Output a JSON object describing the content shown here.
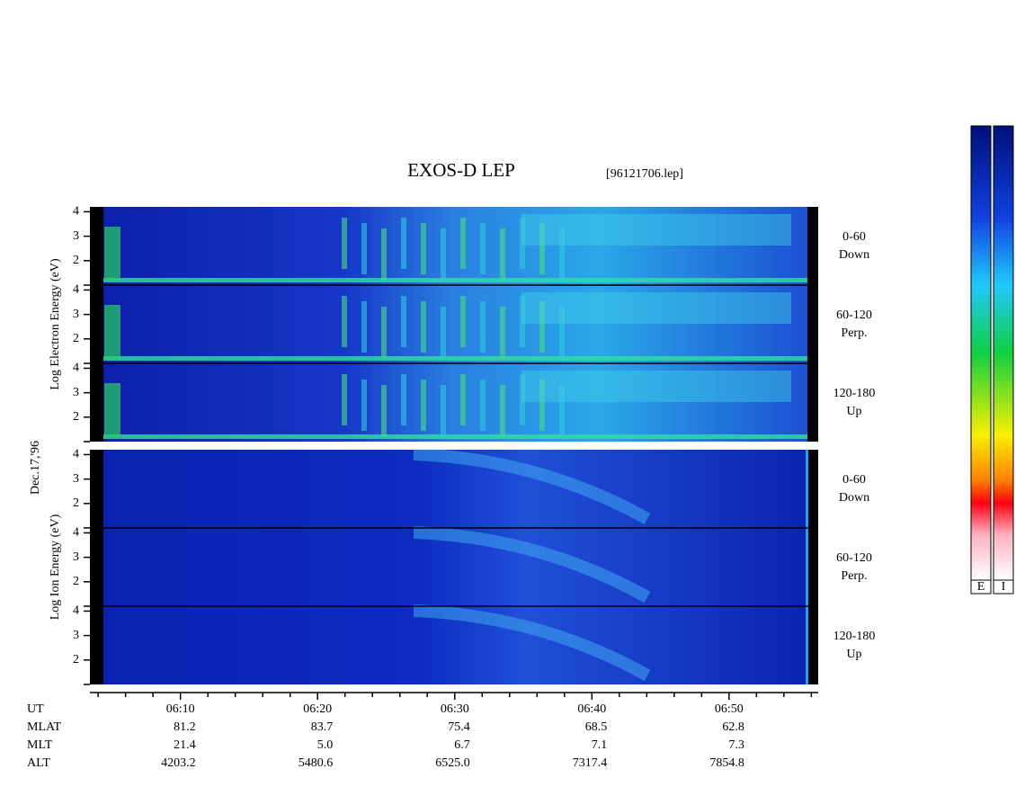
{
  "chart_data": {
    "type": "spectrogram",
    "title": "EXOS-D LEP",
    "subtitle": "[96121706.lep]",
    "date_label": "Dec.17,'96",
    "groups": [
      {
        "ylabel": "Log Electron Energy (eV)",
        "panels": [
          {
            "label_lines": [
              "0-60",
              "Down"
            ]
          },
          {
            "label_lines": [
              "60-120",
              "Perp."
            ]
          },
          {
            "label_lines": [
              "120-180",
              "Up"
            ]
          }
        ]
      },
      {
        "ylabel": "Log Ion Energy (eV)",
        "panels": [
          {
            "label_lines": [
              "0-60",
              "Down"
            ]
          },
          {
            "label_lines": [
              "60-120",
              "Perp."
            ]
          },
          {
            "label_lines": [
              "120-180",
              "Up"
            ]
          }
        ]
      }
    ],
    "ylim": [
      1,
      4.2
    ],
    "yticks": [
      {
        "value": 1,
        "label": null
      },
      2,
      3,
      4
    ],
    "xlim": [
      363.4,
      416.5
    ],
    "xticks": [
      {
        "value": 370,
        "label": "06:10"
      },
      {
        "value": 380,
        "label": "06:20"
      },
      {
        "value": 390,
        "label": "06:30"
      },
      {
        "value": 400,
        "label": "06:40"
      },
      {
        "value": 410,
        "label": "06:50"
      }
    ],
    "xminor_ticks": [
      364,
      366,
      368,
      372,
      374,
      376,
      378,
      382,
      384,
      386,
      388,
      392,
      394,
      396,
      398,
      402,
      404,
      406,
      408,
      412,
      414,
      416
    ],
    "xlabel": "UT",
    "ephemeris": [
      {
        "name": "MLAT",
        "values": [
          "81.2",
          "83.7",
          "75.4",
          "68.5",
          "62.8"
        ]
      },
      {
        "name": "MLT",
        "values": [
          "21.4",
          "5.0",
          "6.7",
          "7.1",
          "7.3"
        ]
      },
      {
        "name": "ALT",
        "values": [
          "4203.2",
          "5480.6",
          "6525.0",
          "7317.4",
          "7854.8"
        ]
      }
    ],
    "colorbar_labels": [
      "E",
      "I"
    ]
  }
}
